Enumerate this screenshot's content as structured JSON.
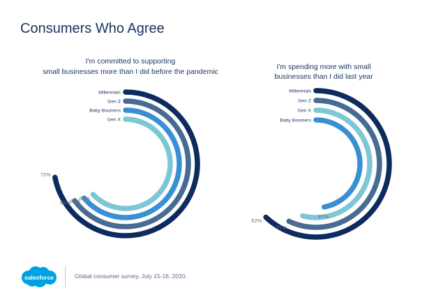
{
  "title": "Consumers Who Agree",
  "footer": {
    "note": "Global consumer survey, July 15-16, 2020.",
    "logo_text": "salesforce",
    "logo_color": "#00a1e0"
  },
  "chart_data": [
    {
      "type": "radial-bar",
      "title_lines": [
        "I'm committed to supporting",
        "small businesses more than I did before the pandemic"
      ],
      "unit": "%",
      "series": [
        {
          "name": "Millennials",
          "value": 72,
          "label": "72%",
          "color": "#0d2b5e"
        },
        {
          "name": "Gen Z",
          "value": 65,
          "label": "65%",
          "color": "#486b93"
        },
        {
          "name": "Baby Boomers",
          "value": 64,
          "label": "64%",
          "color": "#3a8fd3"
        },
        {
          "name": "Gen X",
          "value": 63,
          "label": "63%",
          "color": "#7cc7d4"
        }
      ]
    },
    {
      "type": "radial-bar",
      "title_lines": [
        "I'm spending more with small",
        "businesses than I did last year"
      ],
      "unit": "%",
      "series": [
        {
          "name": "Millennials",
          "value": 62,
          "label": "62%",
          "color": "#0d2b5e"
        },
        {
          "name": "Gen Z",
          "value": 57,
          "label": "57%",
          "color": "#486b93"
        },
        {
          "name": "Gen X",
          "value": 54,
          "label": "54%",
          "color": "#7cc7d4"
        },
        {
          "name": "Baby Boomers",
          "value": 47,
          "label": "47%",
          "color": "#3a8fd3"
        }
      ]
    }
  ]
}
